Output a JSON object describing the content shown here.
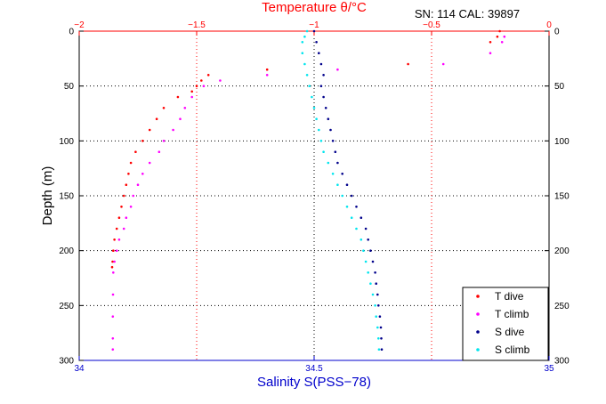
{
  "chart_data": {
    "type": "scatter",
    "title_top": "Temperature θ/°C",
    "subtitle": "SN: 114  CAL: 39897",
    "xlabel": "Salinity S(PSS−78)",
    "ylabel": "Depth (m)",
    "grid": true,
    "legend_position": "bottom-right",
    "axes": {
      "salinity_x": {
        "lim": [
          34,
          35
        ],
        "ticks": [
          34,
          34.5,
          35
        ],
        "tick_labels": [
          "34",
          "34.5",
          "35"
        ],
        "color": "#0000cc"
      },
      "temperature_x": {
        "lim": [
          -2,
          0
        ],
        "ticks": [
          -2,
          -1.5,
          -1,
          -0.5,
          0
        ],
        "tick_labels": [
          "−2",
          "−1.5",
          "−1",
          "−0.5",
          "0"
        ],
        "color": "#ff0000"
      },
      "depth_y": {
        "lim": [
          0,
          300
        ],
        "reversed": true,
        "ticks": [
          0,
          50,
          100,
          150,
          200,
          250,
          300
        ],
        "tick_labels": [
          "0",
          "50",
          "100",
          "150",
          "200",
          "250",
          "300"
        ]
      }
    },
    "series": [
      {
        "name": "T dive",
        "axis": "temperature_x",
        "color": "#ff0000",
        "points": [
          [
            -0.21,
            0
          ],
          [
            -0.22,
            5
          ],
          [
            -0.25,
            10
          ],
          [
            -0.6,
            30
          ],
          [
            -1.2,
            35
          ],
          [
            -1.45,
            40
          ],
          [
            -1.48,
            45
          ],
          [
            -1.5,
            50
          ],
          [
            -1.52,
            55
          ],
          [
            -1.58,
            60
          ],
          [
            -1.64,
            70
          ],
          [
            -1.67,
            80
          ],
          [
            -1.7,
            90
          ],
          [
            -1.73,
            100
          ],
          [
            -1.76,
            110
          ],
          [
            -1.78,
            120
          ],
          [
            -1.79,
            130
          ],
          [
            -1.8,
            140
          ],
          [
            -1.81,
            150
          ],
          [
            -1.82,
            160
          ],
          [
            -1.83,
            170
          ],
          [
            -1.84,
            180
          ],
          [
            -1.85,
            190
          ],
          [
            -1.855,
            200
          ],
          [
            -1.858,
            210
          ],
          [
            -1.86,
            215
          ]
        ]
      },
      {
        "name": "T climb",
        "axis": "temperature_x",
        "color": "#ff00ff",
        "points": [
          [
            -0.19,
            5
          ],
          [
            -0.2,
            10
          ],
          [
            -0.25,
            20
          ],
          [
            -0.45,
            30
          ],
          [
            -0.9,
            35
          ],
          [
            -1.2,
            40
          ],
          [
            -1.4,
            45
          ],
          [
            -1.47,
            50
          ],
          [
            -1.52,
            60
          ],
          [
            -1.55,
            70
          ],
          [
            -1.57,
            80
          ],
          [
            -1.6,
            90
          ],
          [
            -1.64,
            100
          ],
          [
            -1.66,
            110
          ],
          [
            -1.7,
            120
          ],
          [
            -1.73,
            130
          ],
          [
            -1.75,
            140
          ],
          [
            -1.77,
            150
          ],
          [
            -1.78,
            160
          ],
          [
            -1.8,
            170
          ],
          [
            -1.81,
            180
          ],
          [
            -1.83,
            190
          ],
          [
            -1.84,
            200
          ],
          [
            -1.85,
            210
          ],
          [
            -1.855,
            220
          ],
          [
            -1.856,
            240
          ],
          [
            -1.857,
            260
          ],
          [
            -1.857,
            280
          ],
          [
            -1.857,
            290
          ]
        ]
      },
      {
        "name": "S dive",
        "axis": "salinity_x",
        "color": "#00008b",
        "points": [
          [
            34.5,
            0
          ],
          [
            34.505,
            10
          ],
          [
            34.51,
            20
          ],
          [
            34.515,
            30
          ],
          [
            34.52,
            40
          ],
          [
            34.515,
            50
          ],
          [
            34.52,
            60
          ],
          [
            34.525,
            70
          ],
          [
            34.53,
            80
          ],
          [
            34.535,
            90
          ],
          [
            34.54,
            100
          ],
          [
            34.545,
            110
          ],
          [
            34.55,
            120
          ],
          [
            34.56,
            130
          ],
          [
            34.57,
            140
          ],
          [
            34.58,
            150
          ],
          [
            34.59,
            160
          ],
          [
            34.6,
            170
          ],
          [
            34.61,
            180
          ],
          [
            34.615,
            190
          ],
          [
            34.62,
            200
          ],
          [
            34.625,
            210
          ],
          [
            34.63,
            220
          ],
          [
            34.632,
            230
          ],
          [
            34.635,
            240
          ],
          [
            34.637,
            250
          ],
          [
            34.64,
            260
          ],
          [
            34.642,
            270
          ],
          [
            34.643,
            280
          ],
          [
            34.644,
            290
          ]
        ]
      },
      {
        "name": "S climb",
        "axis": "salinity_x",
        "color": "#00e5ee",
        "points": [
          [
            34.485,
            0
          ],
          [
            34.48,
            5
          ],
          [
            34.475,
            10
          ],
          [
            34.475,
            20
          ],
          [
            34.48,
            30
          ],
          [
            34.485,
            40
          ],
          [
            34.49,
            50
          ],
          [
            34.495,
            60
          ],
          [
            34.5,
            70
          ],
          [
            34.505,
            80
          ],
          [
            34.51,
            90
          ],
          [
            34.515,
            100
          ],
          [
            34.52,
            110
          ],
          [
            34.53,
            120
          ],
          [
            34.54,
            130
          ],
          [
            34.55,
            140
          ],
          [
            34.56,
            150
          ],
          [
            34.57,
            160
          ],
          [
            34.58,
            170
          ],
          [
            34.59,
            180
          ],
          [
            34.6,
            190
          ],
          [
            34.605,
            200
          ],
          [
            34.61,
            210
          ],
          [
            34.615,
            220
          ],
          [
            34.62,
            230
          ],
          [
            34.625,
            240
          ],
          [
            34.63,
            250
          ],
          [
            34.632,
            260
          ],
          [
            34.635,
            270
          ],
          [
            34.637,
            280
          ],
          [
            34.638,
            290
          ]
        ]
      }
    ]
  }
}
